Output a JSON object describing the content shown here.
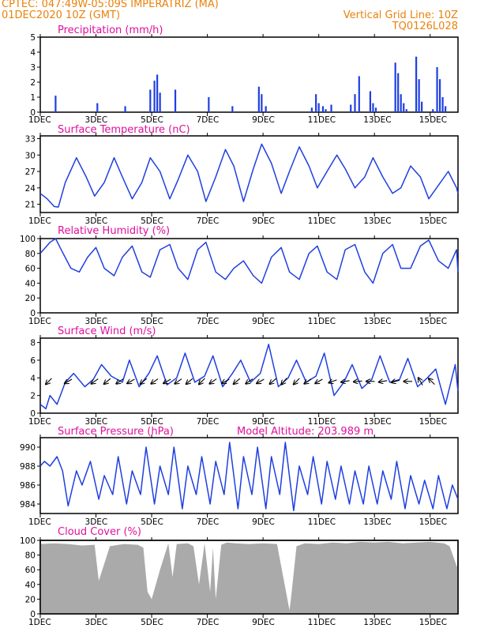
{
  "header": {
    "line1": "CPTEC:   047:49W-05:09S   IMPERATRIZ (MA)",
    "line2": "01DEC2020 10Z (GMT)",
    "right1": "Vertical Grid Line: 10Z",
    "right2": "TQ0126L028"
  },
  "colors": {
    "header": "#e8820c",
    "titles": "#e0109c",
    "series": "#1f3fe0",
    "cloud": "#aaaaaa",
    "frame": "#000000"
  },
  "chart_data": [
    {
      "type": "bar",
      "title": "Precipitation (mm/h)",
      "x_tick_labels": [
        "1DEC",
        "3DEC",
        "5DEC",
        "7DEC",
        "9DEC",
        "11DEC",
        "13DEC",
        "15DEC"
      ],
      "y_tick_labels": [
        "0",
        "1",
        "2",
        "3",
        "4",
        "5"
      ],
      "ylim": [
        0,
        5
      ],
      "xlim": [
        0,
        15
      ],
      "x": [
        0.55,
        2.05,
        3.05,
        3.95,
        4.1,
        4.2,
        4.3,
        4.85,
        6.05,
        6.9,
        7.85,
        7.95,
        8.1,
        9.75,
        9.9,
        10.0,
        10.15,
        10.25,
        10.45,
        11.15,
        11.3,
        11.45,
        11.85,
        11.95,
        12.05,
        12.75,
        12.85,
        12.95,
        13.05,
        13.15,
        13.5,
        13.6,
        13.7,
        14.1,
        14.25,
        14.35,
        14.45,
        14.55
      ],
      "values": [
        1.1,
        0.6,
        0.4,
        1.5,
        2.1,
        2.5,
        1.3,
        1.5,
        1.0,
        0.4,
        1.7,
        1.2,
        0.4,
        0.3,
        1.2,
        0.6,
        0.4,
        0.2,
        0.5,
        0.5,
        1.2,
        2.4,
        1.4,
        0.6,
        0.3,
        3.3,
        2.6,
        1.2,
        0.6,
        0.2,
        3.7,
        2.2,
        0.7,
        0.2,
        3.0,
        2.2,
        1.0,
        0.4
      ]
    },
    {
      "type": "line",
      "title": "Surface Temperature (nC)",
      "x_tick_labels": [
        "1DEC",
        "3DEC",
        "5DEC",
        "7DEC",
        "9DEC",
        "11DEC",
        "13DEC",
        "15DEC"
      ],
      "y_tick_labels": [
        "21",
        "24",
        "27",
        "30",
        "33"
      ],
      "ylim": [
        19.5,
        33.5
      ],
      "xlim": [
        0,
        15
      ],
      "x": [
        0,
        0.25,
        0.5,
        0.65,
        0.9,
        1.3,
        1.65,
        1.95,
        2.3,
        2.65,
        2.95,
        3.3,
        3.65,
        3.95,
        4.3,
        4.65,
        4.95,
        5.3,
        5.65,
        5.95,
        6.3,
        6.65,
        6.95,
        7.3,
        7.65,
        7.95,
        8.3,
        8.65,
        8.95,
        9.3,
        9.65,
        9.95,
        10.3,
        10.65,
        10.95,
        11.3,
        11.65,
        11.95,
        12.3,
        12.65,
        12.95,
        13.3,
        13.65,
        13.95,
        14.3,
        14.65,
        14.95,
        15.0
      ],
      "values": [
        23,
        22,
        20.6,
        20.5,
        25,
        29.5,
        26,
        22.5,
        25,
        29.5,
        26,
        22,
        25,
        29.5,
        27,
        22,
        25.5,
        30,
        27,
        21.5,
        26,
        31,
        28,
        21.5,
        27.5,
        32,
        28.5,
        23,
        27,
        31.5,
        28,
        24,
        27,
        30,
        27.5,
        24,
        26,
        29.5,
        26,
        23,
        24,
        28,
        26,
        22,
        24.5,
        27,
        24,
        23
      ]
    },
    {
      "type": "line",
      "title": "Relative Humidity (%)",
      "x_tick_labels": [
        "1DEC",
        "3DEC",
        "5DEC",
        "7DEC",
        "9DEC",
        "11DEC",
        "13DEC",
        "15DEC"
      ],
      "y_tick_labels": [
        "0",
        "20",
        "40",
        "60",
        "80",
        "100"
      ],
      "ylim": [
        0,
        100
      ],
      "xlim": [
        0,
        15
      ],
      "x": [
        0,
        0.35,
        0.55,
        0.75,
        1.1,
        1.4,
        1.7,
        2.0,
        2.3,
        2.65,
        2.95,
        3.3,
        3.65,
        3.95,
        4.3,
        4.65,
        4.95,
        5.3,
        5.65,
        5.95,
        6.3,
        6.65,
        6.95,
        7.3,
        7.65,
        7.95,
        8.3,
        8.65,
        8.95,
        9.3,
        9.65,
        9.95,
        10.3,
        10.65,
        10.95,
        11.3,
        11.65,
        11.95,
        12.3,
        12.65,
        12.95,
        13.3,
        13.65,
        13.95,
        14.3,
        14.65,
        14.95,
        15.0
      ],
      "values": [
        80,
        95,
        100,
        85,
        60,
        55,
        75,
        88,
        60,
        50,
        75,
        90,
        55,
        48,
        85,
        92,
        60,
        45,
        85,
        95,
        55,
        45,
        60,
        70,
        50,
        40,
        75,
        88,
        55,
        45,
        80,
        90,
        55,
        45,
        85,
        92,
        55,
        40,
        80,
        92,
        60,
        60,
        90,
        98,
        70,
        60,
        85,
        55
      ]
    },
    {
      "type": "line",
      "title": "Surface Wind (m/s)",
      "x_tick_labels": [
        "1DEC",
        "3DEC",
        "5DEC",
        "7DEC",
        "9DEC",
        "11DEC",
        "13DEC",
        "15DEC"
      ],
      "y_tick_labels": [
        "0",
        "2",
        "4",
        "6",
        "8"
      ],
      "ylim": [
        0,
        8.5
      ],
      "xlim": [
        0,
        15
      ],
      "x": [
        0,
        0.2,
        0.35,
        0.6,
        0.9,
        1.2,
        1.6,
        1.9,
        2.2,
        2.55,
        2.95,
        3.2,
        3.55,
        3.9,
        4.2,
        4.55,
        4.9,
        5.2,
        5.55,
        5.9,
        6.2,
        6.55,
        6.9,
        7.2,
        7.55,
        7.9,
        8.2,
        8.55,
        8.9,
        9.2,
        9.55,
        9.9,
        10.2,
        10.55,
        10.9,
        11.2,
        11.55,
        11.9,
        12.2,
        12.55,
        12.9,
        13.2,
        13.55,
        13.9,
        14.2,
        14.55,
        14.9,
        15.0
      ],
      "values": [
        1.0,
        0.5,
        2.0,
        1.0,
        3.5,
        4.5,
        3.0,
        3.8,
        5.5,
        4.2,
        3.5,
        6.0,
        3.0,
        4.5,
        6.5,
        3.2,
        4.0,
        6.8,
        3.5,
        4.2,
        6.5,
        3.0,
        4.5,
        6.0,
        3.5,
        4.5,
        7.8,
        3.0,
        4.0,
        6.0,
        3.5,
        4.2,
        6.8,
        2.0,
        3.5,
        5.5,
        2.8,
        3.8,
        6.5,
        3.5,
        3.8,
        6.2,
        3.0,
        4.0,
        5.0,
        1.0,
        5.5,
        2.5
      ],
      "vectors_x": [
        0.3,
        1.0,
        1.95,
        2.4,
        2.85,
        3.25,
        3.7,
        4.1,
        4.55,
        4.95,
        5.35,
        5.8,
        6.2,
        6.65,
        7.05,
        7.5,
        7.9,
        8.35,
        8.75,
        9.2,
        9.6,
        10.0,
        10.5,
        10.95,
        11.4,
        11.85,
        12.3,
        12.75,
        13.2,
        13.65,
        14.05
      ],
      "vectors_angle_deg": [
        225,
        210,
        215,
        220,
        215,
        210,
        220,
        215,
        210,
        215,
        220,
        225,
        215,
        210,
        220,
        215,
        210,
        220,
        230,
        225,
        215,
        210,
        200,
        190,
        185,
        180,
        190,
        195,
        180,
        120,
        135
      ]
    },
    {
      "type": "line",
      "title": "Surface Pressure (hPa)",
      "subtitle": "Model Altitude: 203.989 m",
      "x_tick_labels": [
        "1DEC",
        "3DEC",
        "5DEC",
        "7DEC",
        "9DEC",
        "11DEC",
        "13DEC",
        "15DEC"
      ],
      "y_tick_labels": [
        "984",
        "986",
        "988",
        "990"
      ],
      "ylim": [
        983,
        991
      ],
      "xlim": [
        0,
        15
      ],
      "x": [
        0,
        0.15,
        0.35,
        0.6,
        0.8,
        1.0,
        1.3,
        1.5,
        1.8,
        2.1,
        2.3,
        2.6,
        2.8,
        3.1,
        3.3,
        3.6,
        3.8,
        4.1,
        4.3,
        4.6,
        4.8,
        5.1,
        5.3,
        5.6,
        5.8,
        6.1,
        6.3,
        6.6,
        6.8,
        7.1,
        7.3,
        7.6,
        7.8,
        8.1,
        8.3,
        8.6,
        8.8,
        9.1,
        9.3,
        9.6,
        9.8,
        10.1,
        10.3,
        10.6,
        10.8,
        11.1,
        11.3,
        11.6,
        11.8,
        12.1,
        12.3,
        12.6,
        12.8,
        13.1,
        13.3,
        13.6,
        13.8,
        14.1,
        14.3,
        14.6,
        14.8,
        15.0
      ],
      "values": [
        988,
        988.5,
        988,
        989,
        987.5,
        983.8,
        987.5,
        986,
        988.5,
        984.5,
        987,
        985,
        989,
        984,
        987.5,
        985,
        990,
        984,
        988,
        985,
        990,
        983.5,
        988,
        985,
        989,
        984,
        988.5,
        985,
        990.5,
        983.5,
        989,
        985,
        990,
        983.5,
        989,
        985,
        990.5,
        983.3,
        988,
        985,
        989,
        984,
        988.5,
        984.5,
        988,
        984,
        987.5,
        984,
        988,
        984,
        987.5,
        984.5,
        988.5,
        983.5,
        987,
        984,
        986.5,
        983.5,
        987,
        983.5,
        986,
        984.5
      ]
    },
    {
      "type": "area",
      "title": "Cloud Cover (%)",
      "x_tick_labels": [
        "1DEC",
        "3DEC",
        "5DEC",
        "7DEC",
        "9DEC",
        "11DEC",
        "13DEC",
        "15DEC"
      ],
      "y_tick_labels": [
        "0",
        "20",
        "40",
        "60",
        "80",
        "100"
      ],
      "ylim": [
        0,
        100
      ],
      "xlim": [
        0,
        15
      ],
      "x": [
        0,
        0.5,
        1.0,
        1.5,
        1.95,
        2.1,
        2.5,
        3.0,
        3.5,
        3.7,
        3.85,
        4.0,
        4.3,
        4.6,
        4.75,
        4.9,
        5.3,
        5.5,
        5.7,
        5.9,
        6.1,
        6.2,
        6.3,
        6.5,
        6.7,
        7.0,
        7.5,
        8.0,
        8.5,
        8.95,
        9.0,
        9.2,
        9.5,
        10.0,
        10.5,
        11.0,
        11.5,
        12.0,
        12.5,
        13.0,
        13.5,
        14.0,
        14.5,
        14.7,
        15.0
      ],
      "values": [
        95,
        96,
        95,
        93,
        94,
        45,
        92,
        95,
        94,
        90,
        30,
        20,
        60,
        96,
        50,
        95,
        96,
        92,
        40,
        96,
        30,
        90,
        20,
        94,
        97,
        96,
        95,
        96,
        95,
        5,
        20,
        92,
        96,
        95,
        97,
        96,
        98,
        97,
        98,
        96,
        97,
        98,
        96,
        92,
        60
      ]
    }
  ]
}
